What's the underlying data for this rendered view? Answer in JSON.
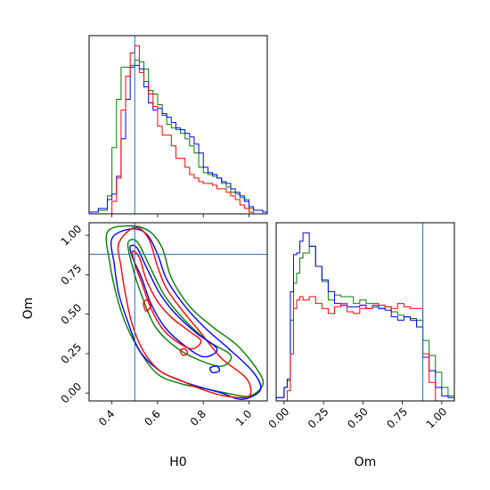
{
  "chart_data": {
    "type": "corner",
    "truth": {
      "H0": 0.5,
      "Om": 0.88
    },
    "colors": {
      "truth": "#1f77b4",
      "green": "#008000",
      "blue": "#0000ff",
      "red": "#ff0000"
    },
    "h0_hist": {
      "type": "step-histogram",
      "xlim": [
        0.3,
        1.08
      ],
      "bin_edges": [
        0.3,
        0.34,
        0.38,
        0.4,
        0.42,
        0.44,
        0.46,
        0.48,
        0.5,
        0.52,
        0.54,
        0.56,
        0.58,
        0.6,
        0.62,
        0.64,
        0.66,
        0.68,
        0.7,
        0.72,
        0.74,
        0.76,
        0.78,
        0.8,
        0.82,
        0.84,
        0.86,
        0.88,
        0.9,
        0.92,
        0.94,
        0.96,
        0.98,
        1.0,
        1.02,
        1.06,
        1.08
      ],
      "series": [
        {
          "color": "green",
          "values": [
            0.01,
            0.02,
            0.1,
            0.37,
            0.64,
            0.82,
            0.82,
            0.83,
            0.86,
            0.85,
            0.81,
            0.69,
            0.67,
            0.61,
            0.55,
            0.5,
            0.48,
            0.47,
            0.45,
            0.42,
            0.38,
            0.34,
            0.26,
            0.23,
            0.22,
            0.21,
            0.2,
            0.17,
            0.15,
            0.12,
            0.11,
            0.09,
            0.08,
            0.03,
            0.02,
            0.01
          ]
        },
        {
          "color": "blue",
          "values": [
            0.01,
            0.03,
            0.08,
            0.11,
            0.21,
            0.42,
            0.64,
            0.82,
            0.83,
            0.81,
            0.71,
            0.62,
            0.58,
            0.59,
            0.56,
            0.54,
            0.51,
            0.48,
            0.47,
            0.45,
            0.43,
            0.39,
            0.34,
            0.26,
            0.23,
            0.22,
            0.2,
            0.18,
            0.17,
            0.14,
            0.12,
            0.1,
            0.07,
            0.04,
            0.02,
            0.01
          ]
        },
        {
          "color": "red",
          "values": [
            0.0,
            0.0,
            0.0,
            0.07,
            0.2,
            0.58,
            0.77,
            0.9,
            0.94,
            0.79,
            0.74,
            0.67,
            0.6,
            0.49,
            0.44,
            0.44,
            0.38,
            0.31,
            0.31,
            0.26,
            0.22,
            0.2,
            0.18,
            0.17,
            0.17,
            0.16,
            0.14,
            0.14,
            0.12,
            0.1,
            0.08,
            0.05,
            0.03,
            0.01,
            0.0,
            0.0
          ]
        }
      ]
    },
    "om_hist": {
      "type": "step-histogram",
      "xlim": [
        -0.05,
        1.08
      ],
      "xticks": [
        "0.00",
        "0.25",
        "0.50",
        "0.75",
        "1.00"
      ],
      "xtick_values": [
        0,
        0.25,
        0.5,
        0.75,
        1.0
      ],
      "xlabel": "Om",
      "bin_edges": [
        -0.05,
        0.0,
        0.02,
        0.04,
        0.06,
        0.08,
        0.1,
        0.12,
        0.16,
        0.2,
        0.24,
        0.28,
        0.32,
        0.36,
        0.4,
        0.44,
        0.48,
        0.52,
        0.56,
        0.6,
        0.64,
        0.68,
        0.72,
        0.76,
        0.8,
        0.84,
        0.88,
        0.92,
        0.96,
        1.0,
        1.04,
        1.08
      ],
      "series": [
        {
          "color": "green",
          "values": [
            0.02,
            0.08,
            0.12,
            0.48,
            0.7,
            0.76,
            0.85,
            0.88,
            0.92,
            0.8,
            0.71,
            0.6,
            0.63,
            0.62,
            0.62,
            0.58,
            0.6,
            0.58,
            0.58,
            0.55,
            0.56,
            0.53,
            0.51,
            0.5,
            0.49,
            0.48,
            0.36,
            0.27,
            0.17,
            0.08,
            0.03
          ]
        },
        {
          "color": "blue",
          "values": [
            0.02,
            0.08,
            0.13,
            0.65,
            0.87,
            0.88,
            0.95,
            1.0,
            0.92,
            0.8,
            0.72,
            0.65,
            0.58,
            0.57,
            0.56,
            0.56,
            0.57,
            0.55,
            0.56,
            0.55,
            0.54,
            0.5,
            0.48,
            0.5,
            0.48,
            0.44,
            0.26,
            0.18,
            0.08,
            0.03,
            0.02
          ]
        },
        {
          "color": "red",
          "values": [
            0.0,
            0.0,
            0.06,
            0.28,
            0.55,
            0.6,
            0.62,
            0.6,
            0.62,
            0.58,
            0.55,
            0.52,
            0.56,
            0.58,
            0.53,
            0.52,
            0.55,
            0.55,
            0.57,
            0.57,
            0.56,
            0.55,
            0.58,
            0.56,
            0.55,
            0.55,
            0.28,
            0.11,
            0.0,
            0.0,
            0.0
          ]
        }
      ]
    },
    "joint": {
      "type": "contour",
      "xlim": [
        0.3,
        1.08
      ],
      "ylim": [
        -0.05,
        1.08
      ],
      "xticks": [
        "0.4",
        "0.6",
        "0.8",
        "1.0"
      ],
      "xtick_values": [
        0.4,
        0.6,
        0.8,
        1.0
      ],
      "yticks": [
        "0.00",
        "0.25",
        "0.50",
        "0.75",
        "1.00"
      ],
      "ytick_values": [
        0,
        0.25,
        0.5,
        0.75,
        1.0
      ],
      "xlabel": "H0",
      "ylabel": "Om",
      "contours": [
        {
          "color": "green",
          "level": "outer",
          "points": [
            [
              0.38,
              1.02
            ],
            [
              0.47,
              1.06
            ],
            [
              0.56,
              1.03
            ],
            [
              0.62,
              0.92
            ],
            [
              0.66,
              0.73
            ],
            [
              0.74,
              0.55
            ],
            [
              0.84,
              0.42
            ],
            [
              0.95,
              0.3
            ],
            [
              1.04,
              0.14
            ],
            [
              1.06,
              0.05
            ],
            [
              1.0,
              -0.02
            ],
            [
              0.9,
              0.0
            ],
            [
              0.8,
              0.03
            ],
            [
              0.7,
              0.06
            ],
            [
              0.6,
              0.12
            ],
            [
              0.52,
              0.27
            ],
            [
              0.46,
              0.44
            ],
            [
              0.42,
              0.62
            ],
            [
              0.39,
              0.83
            ],
            [
              0.38,
              1.02
            ]
          ]
        },
        {
          "color": "blue",
          "level": "outer",
          "points": [
            [
              0.4,
              0.98
            ],
            [
              0.48,
              1.04
            ],
            [
              0.55,
              1.01
            ],
            [
              0.6,
              0.88
            ],
            [
              0.64,
              0.72
            ],
            [
              0.72,
              0.55
            ],
            [
              0.81,
              0.41
            ],
            [
              0.92,
              0.27
            ],
            [
              1.02,
              0.13
            ],
            [
              1.05,
              0.02
            ],
            [
              0.97,
              -0.04
            ],
            [
              0.88,
              0.0
            ],
            [
              0.78,
              0.04
            ],
            [
              0.68,
              0.09
            ],
            [
              0.6,
              0.15
            ],
            [
              0.52,
              0.27
            ],
            [
              0.47,
              0.45
            ],
            [
              0.43,
              0.63
            ],
            [
              0.41,
              0.82
            ],
            [
              0.4,
              0.98
            ]
          ]
        },
        {
          "color": "red",
          "level": "outer",
          "points": [
            [
              0.43,
              0.95
            ],
            [
              0.5,
              1.05
            ],
            [
              0.56,
              0.98
            ],
            [
              0.6,
              0.8
            ],
            [
              0.64,
              0.66
            ],
            [
              0.71,
              0.52
            ],
            [
              0.79,
              0.38
            ],
            [
              0.88,
              0.22
            ],
            [
              0.99,
              0.09
            ],
            [
              1.0,
              -0.02
            ],
            [
              0.9,
              -0.02
            ],
            [
              0.8,
              0.02
            ],
            [
              0.7,
              0.08
            ],
            [
              0.61,
              0.14
            ],
            [
              0.54,
              0.26
            ],
            [
              0.49,
              0.43
            ],
            [
              0.46,
              0.62
            ],
            [
              0.44,
              0.8
            ],
            [
              0.43,
              0.95
            ]
          ]
        },
        {
          "color": "green",
          "level": "inner",
          "points": [
            [
              0.47,
              0.95
            ],
            [
              0.51,
              0.96
            ],
            [
              0.56,
              0.82
            ],
            [
              0.63,
              0.62
            ],
            [
              0.72,
              0.46
            ],
            [
              0.82,
              0.33
            ],
            [
              0.92,
              0.24
            ],
            [
              0.88,
              0.17
            ],
            [
              0.78,
              0.21
            ],
            [
              0.68,
              0.29
            ],
            [
              0.59,
              0.42
            ],
            [
              0.53,
              0.62
            ],
            [
              0.49,
              0.8
            ],
            [
              0.47,
              0.95
            ]
          ]
        },
        {
          "color": "blue",
          "level": "inner",
          "points": [
            [
              0.48,
              0.93
            ],
            [
              0.51,
              0.92
            ],
            [
              0.55,
              0.8
            ],
            [
              0.61,
              0.63
            ],
            [
              0.68,
              0.5
            ],
            [
              0.77,
              0.38
            ],
            [
              0.86,
              0.28
            ],
            [
              0.8,
              0.23
            ],
            [
              0.71,
              0.31
            ],
            [
              0.63,
              0.42
            ],
            [
              0.57,
              0.57
            ],
            [
              0.53,
              0.73
            ],
            [
              0.49,
              0.86
            ],
            [
              0.48,
              0.93
            ]
          ]
        },
        {
          "color": "red",
          "level": "inner",
          "points": [
            [
              0.49,
              0.9
            ],
            [
              0.52,
              0.86
            ],
            [
              0.55,
              0.72
            ],
            [
              0.6,
              0.58
            ],
            [
              0.66,
              0.48
            ],
            [
              0.74,
              0.39
            ],
            [
              0.79,
              0.33
            ],
            [
              0.75,
              0.28
            ],
            [
              0.68,
              0.33
            ],
            [
              0.62,
              0.41
            ],
            [
              0.57,
              0.54
            ],
            [
              0.53,
              0.7
            ],
            [
              0.5,
              0.82
            ],
            [
              0.49,
              0.9
            ]
          ]
        },
        {
          "color": "red",
          "level": "blob",
          "points": [
            [
              0.54,
              0.58
            ],
            [
              0.56,
              0.59
            ],
            [
              0.57,
              0.55
            ],
            [
              0.55,
              0.52
            ],
            [
              0.54,
              0.55
            ],
            [
              0.54,
              0.58
            ]
          ]
        },
        {
          "color": "blue",
          "level": "blob",
          "points": [
            [
              0.83,
              0.16
            ],
            [
              0.86,
              0.17
            ],
            [
              0.87,
              0.14
            ],
            [
              0.84,
              0.13
            ],
            [
              0.83,
              0.16
            ]
          ]
        },
        {
          "color": "red",
          "level": "blob",
          "points": [
            [
              0.7,
              0.27
            ],
            [
              0.72,
              0.28
            ],
            [
              0.73,
              0.25
            ],
            [
              0.71,
              0.24
            ],
            [
              0.7,
              0.27
            ]
          ]
        }
      ]
    }
  }
}
